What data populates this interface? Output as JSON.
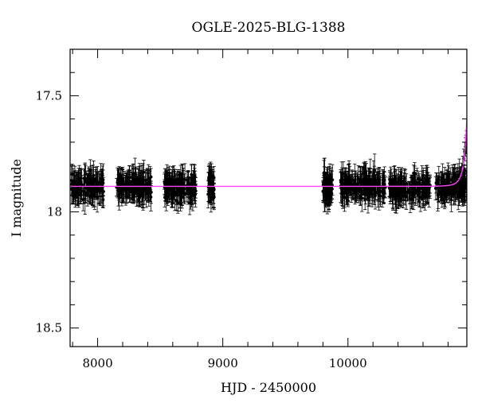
{
  "chart_data": {
    "type": "scatter",
    "title": "OGLE-2025-BLG-1388",
    "xlabel": "HJD - 2450000",
    "ylabel": "I magnitude",
    "xlim": [
      7780,
      10950
    ],
    "ylim": [
      18.58,
      17.3
    ],
    "y_inverted": true,
    "grid": false,
    "x_ticks": [
      {
        "value": 8000,
        "label": "8000"
      },
      {
        "value": 9000,
        "label": "9000"
      },
      {
        "value": 10000,
        "label": "10000"
      }
    ],
    "y_ticks": [
      {
        "value": 17.5,
        "label": "17.5"
      },
      {
        "value": 18,
        "label": "18"
      },
      {
        "value": 18.5,
        "label": "18.5"
      }
    ],
    "x_minor_step": 200,
    "y_minor_step": 0.1,
    "baseline_mag": 17.89,
    "observing_seasons": [
      {
        "start": 7790,
        "end": 8050,
        "mean": 17.89,
        "scatter": 0.035
      },
      {
        "start": 8150,
        "end": 8430,
        "mean": 17.89,
        "scatter": 0.035
      },
      {
        "start": 8530,
        "end": 8790,
        "mean": 17.89,
        "scatter": 0.035
      },
      {
        "start": 8880,
        "end": 8930,
        "mean": 17.89,
        "scatter": 0.04
      },
      {
        "start": 9800,
        "end": 9880,
        "mean": 17.9,
        "scatter": 0.04
      },
      {
        "start": 9940,
        "end": 10300,
        "mean": 17.89,
        "scatter": 0.035
      },
      {
        "start": 10330,
        "end": 10660,
        "mean": 17.9,
        "scatter": 0.03
      },
      {
        "start": 10700,
        "end": 10950,
        "mean": 17.89,
        "scatter": 0.03
      }
    ],
    "rise_points": [
      {
        "x": 10880,
        "y": 17.87
      },
      {
        "x": 10895,
        "y": 17.85
      },
      {
        "x": 10908,
        "y": 17.83
      },
      {
        "x": 10918,
        "y": 17.8
      },
      {
        "x": 10926,
        "y": 17.77
      },
      {
        "x": 10933,
        "y": 17.74
      },
      {
        "x": 10939,
        "y": 17.72
      },
      {
        "x": 10944,
        "y": 17.71
      },
      {
        "x": 10948,
        "y": 17.69
      }
    ],
    "error_bar_typical": 0.05,
    "model": {
      "t0": 10990,
      "u0": 0.3,
      "tE": 40,
      "baseline": 17.89
    },
    "colors": {
      "points": "#000000",
      "model": "#ff44ff",
      "frame": "#000000"
    }
  }
}
